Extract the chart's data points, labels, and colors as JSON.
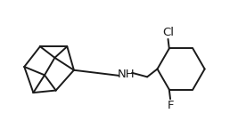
{
  "background_color": "#ffffff",
  "line_color": "#1a1a1a",
  "line_width": 1.4,
  "label_Cl": "Cl",
  "label_F": "F",
  "label_NH": "NH",
  "font_size": 9.5,
  "fig_width": 2.67,
  "fig_height": 1.55,
  "dpi": 100,
  "xlim": [
    0.0,
    10.5
  ],
  "ylim": [
    0.8,
    5.5
  ]
}
